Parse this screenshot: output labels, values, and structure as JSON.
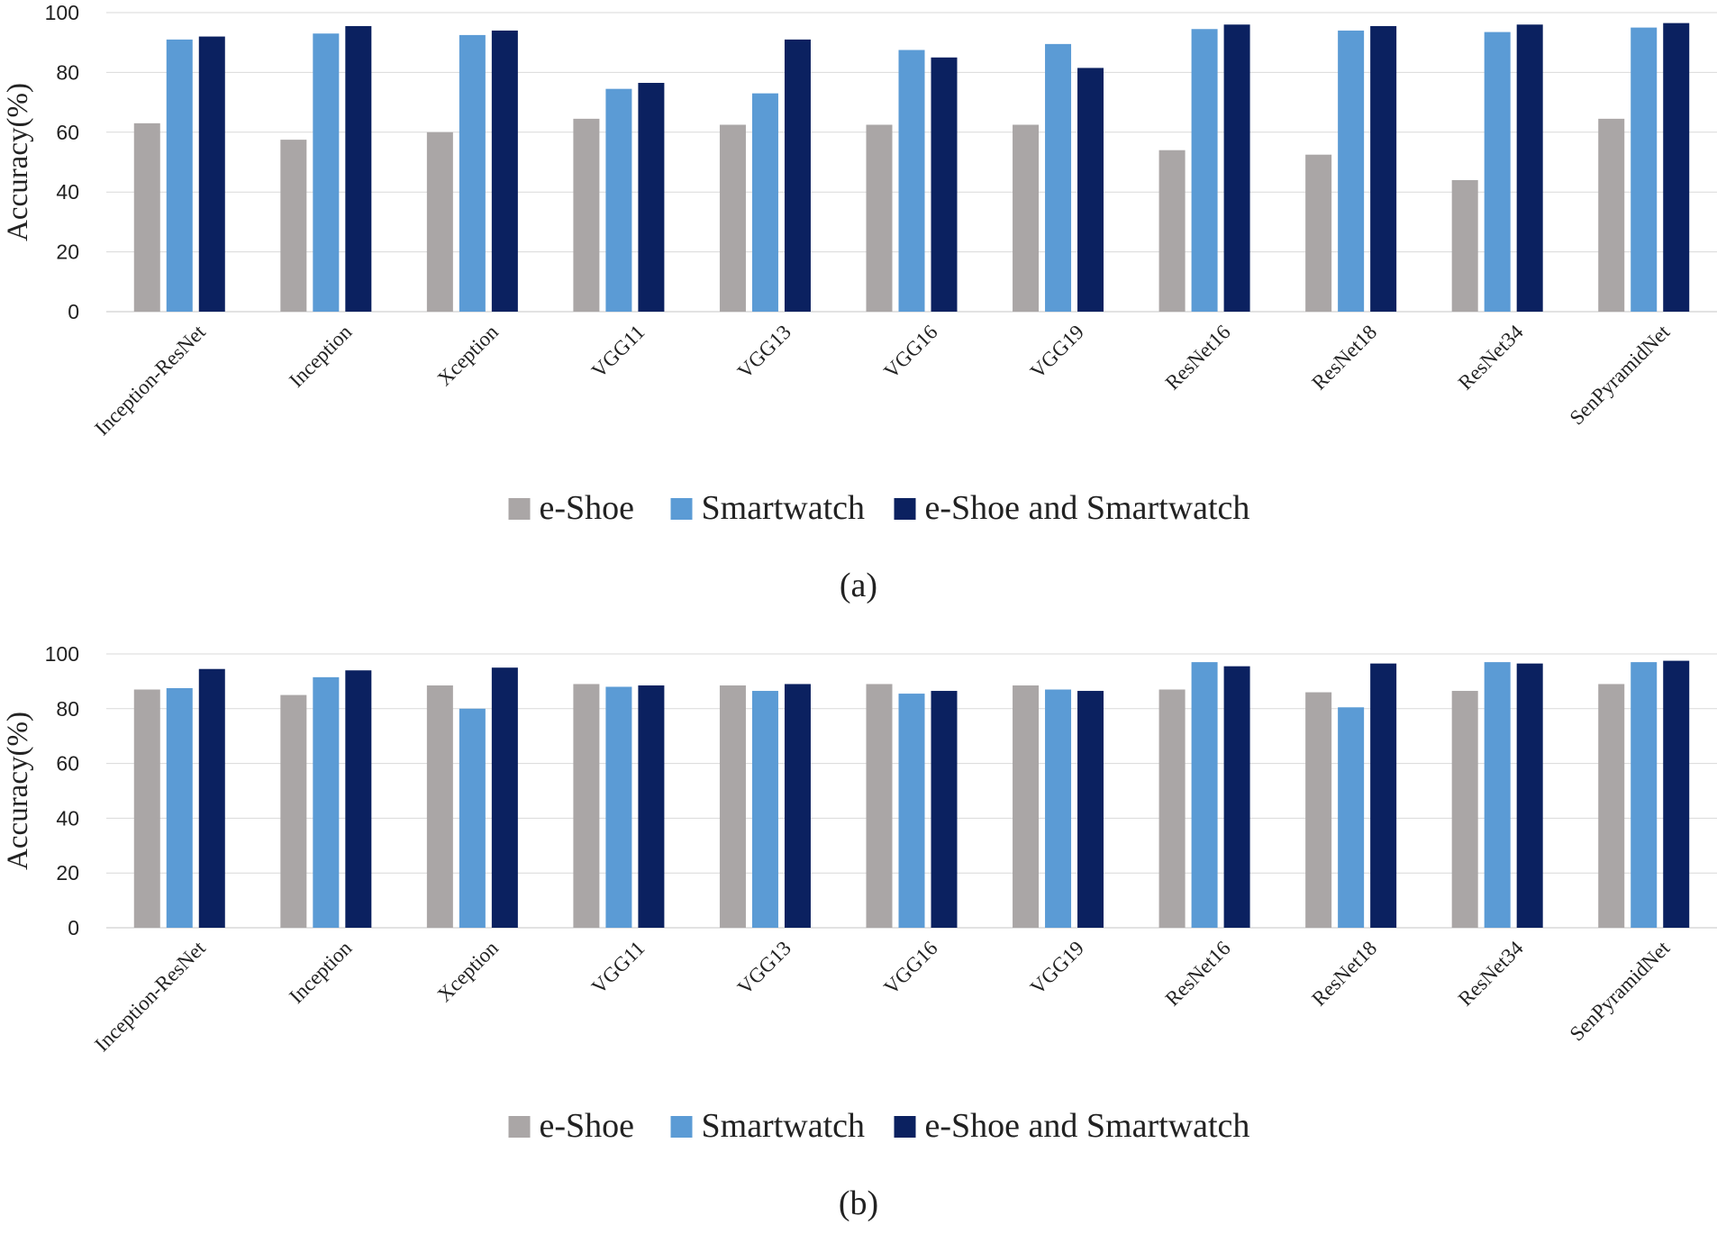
{
  "colors": {
    "e_shoe": "#aaa6a6",
    "smartwatch": "#5b9bd5",
    "combined": "#0b2160",
    "grid": "#d9d9d9"
  },
  "chart_data": [
    {
      "type": "bar",
      "caption": "(a)",
      "ylabel": "Accuracy(%)",
      "xlabel": "",
      "ylim": [
        0,
        100
      ],
      "yticks": [
        0,
        20,
        40,
        60,
        80,
        100
      ],
      "grid": true,
      "legend_position": "bottom",
      "categories": [
        "Inception-ResNet",
        "Inception",
        "Xception",
        "VGG11",
        "VGG13",
        "VGG16",
        "VGG19",
        "ResNet16",
        "ResNet18",
        "ResNet34",
        "SenPyramidNet"
      ],
      "series": [
        {
          "name": "e-Shoe",
          "values": [
            63,
            57.5,
            60,
            64.5,
            62.5,
            62.5,
            62.5,
            54,
            52.5,
            44,
            64.5
          ]
        },
        {
          "name": "Smartwatch",
          "values": [
            91,
            93,
            92.5,
            74.5,
            73,
            87.5,
            89.5,
            94.5,
            94,
            93.5,
            95
          ]
        },
        {
          "name": "e-Shoe and Smartwatch",
          "values": [
            92,
            95.5,
            94,
            76.5,
            91,
            85,
            81.5,
            96,
            95.5,
            96,
            96.5
          ]
        }
      ]
    },
    {
      "type": "bar",
      "caption": "(b)",
      "ylabel": "Accuracy(%)",
      "xlabel": "",
      "ylim": [
        0,
        100
      ],
      "yticks": [
        0,
        20,
        40,
        60,
        80,
        100
      ],
      "grid": true,
      "legend_position": "bottom",
      "categories": [
        "Inception-ResNet",
        "Inception",
        "Xception",
        "VGG11",
        "VGG13",
        "VGG16",
        "VGG19",
        "ResNet16",
        "ResNet18",
        "ResNet34",
        "SenPyramidNet"
      ],
      "series": [
        {
          "name": "e-Shoe",
          "values": [
            87,
            85,
            88.5,
            89,
            88.5,
            89,
            88.5,
            87,
            86,
            86.5,
            89
          ]
        },
        {
          "name": "Smartwatch",
          "values": [
            87.5,
            91.5,
            80,
            88,
            86.5,
            85.5,
            87,
            97,
            80.5,
            97,
            97
          ]
        },
        {
          "name": "e-Shoe and Smartwatch",
          "values": [
            94.5,
            94,
            95,
            88.5,
            89,
            86.5,
            86.5,
            95.5,
            96.5,
            96.5,
            97.5
          ]
        }
      ]
    }
  ]
}
